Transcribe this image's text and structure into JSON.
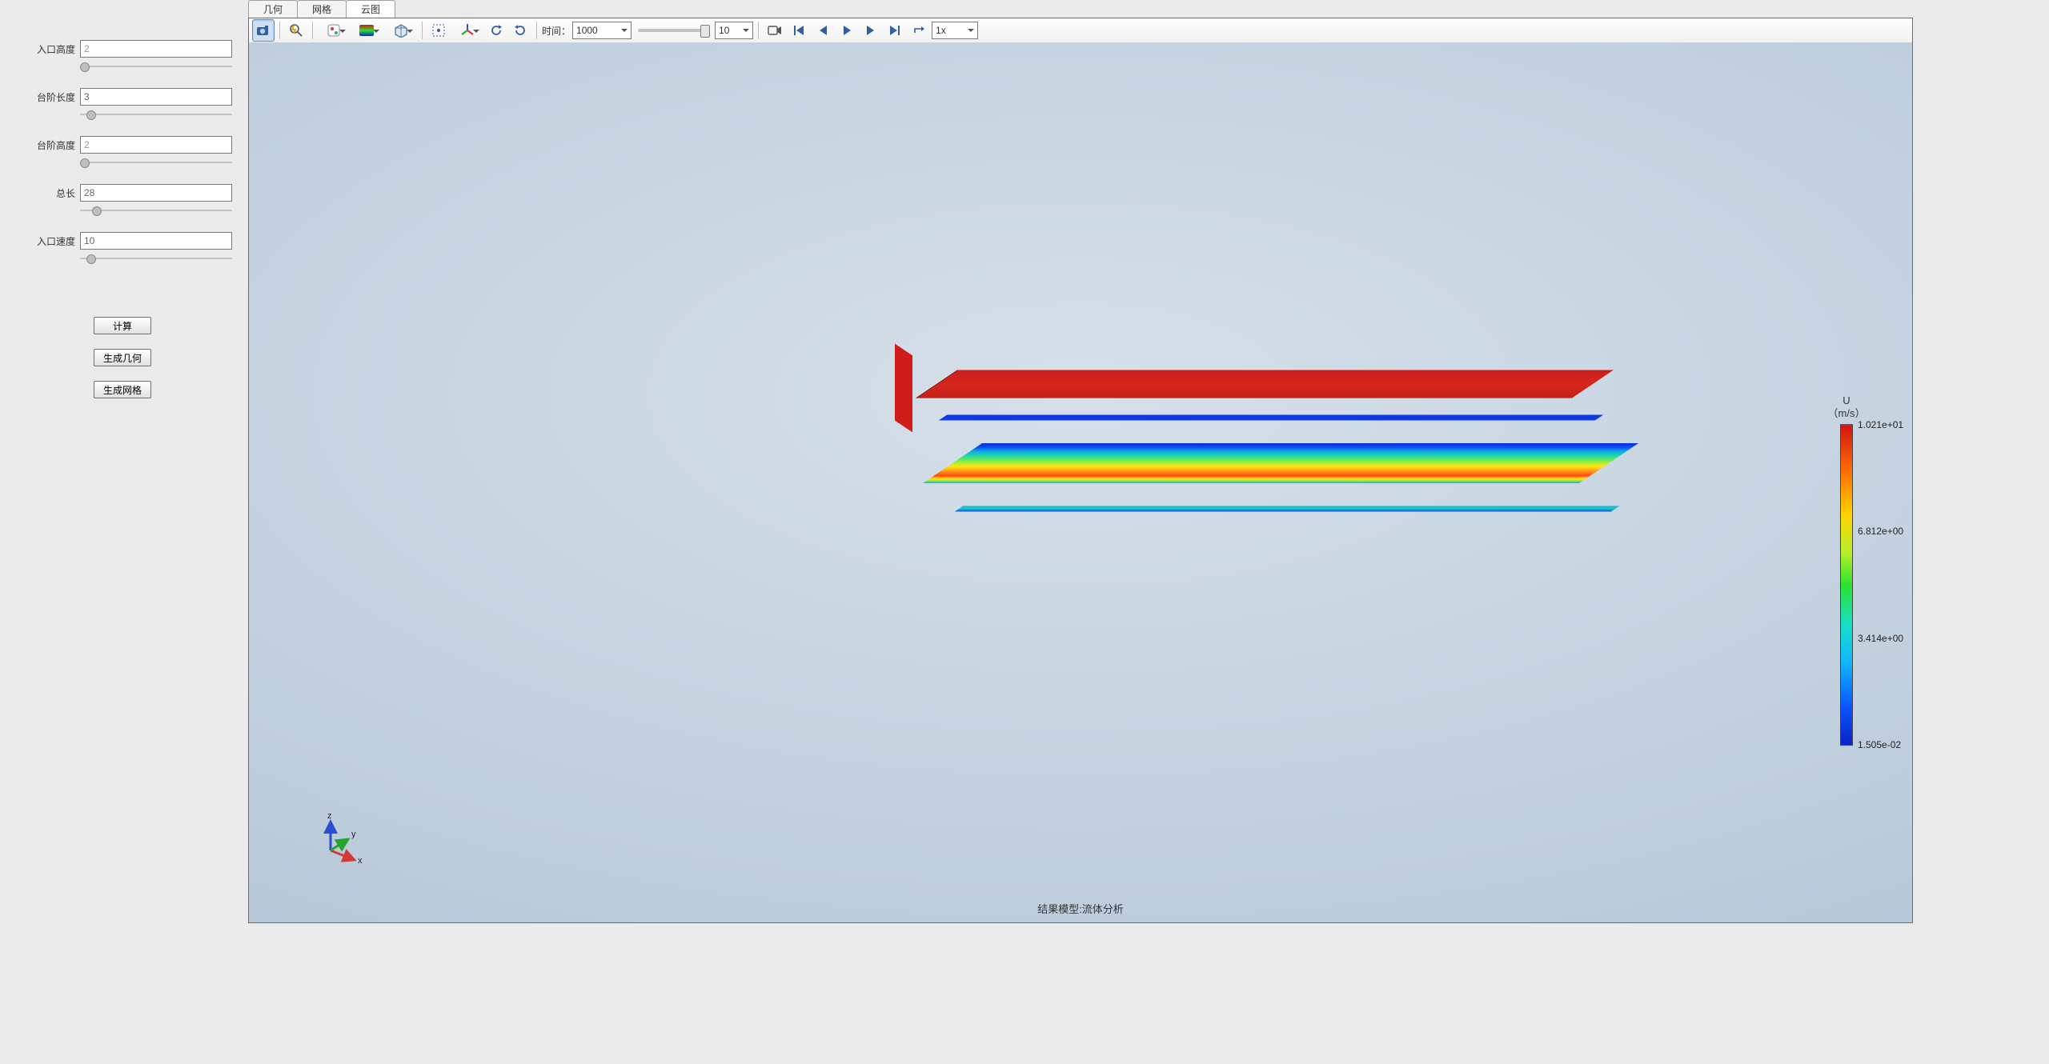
{
  "sidebar": {
    "params": [
      {
        "label": "入口高度",
        "value": "2",
        "readonly": true,
        "knob_pct": 0
      },
      {
        "label": "台阶长度",
        "value": "3",
        "readonly": false,
        "knob_pct": 4
      },
      {
        "label": "台阶高度",
        "value": "2",
        "readonly": true,
        "knob_pct": 0
      },
      {
        "label": "总长",
        "value": "28",
        "readonly": false,
        "knob_pct": 8
      },
      {
        "label": "入口速度",
        "value": "10",
        "readonly": false,
        "knob_pct": 4
      }
    ],
    "buttons": [
      {
        "id": "compute",
        "label": "计算"
      },
      {
        "id": "gen-geom",
        "label": "生成几何"
      },
      {
        "id": "gen-mesh",
        "label": "生成网格"
      }
    ]
  },
  "tabs": [
    {
      "id": "tab-geom",
      "label": "几何",
      "active": false
    },
    {
      "id": "tab-mesh",
      "label": "网格",
      "active": false
    },
    {
      "id": "tab-cloud",
      "label": "云图",
      "active": true
    }
  ],
  "toolbar": {
    "time_label": "时间：",
    "time_value": "1000",
    "time_step": "10",
    "speed": "1x"
  },
  "viewport": {
    "caption": "结果模型:流体分析",
    "triad": {
      "x_color": "#d013a3a",
      "y_color": "#2aa32a",
      "z_color": "#2a4fd0",
      "x": "x",
      "y": "y",
      "z": "z"
    }
  },
  "colorbar": {
    "title": "U",
    "units": "（m/s）",
    "ticks": [
      {
        "pos": 0,
        "label": "1.021e+01"
      },
      {
        "pos": 33.3,
        "label": "6.812e+00"
      },
      {
        "pos": 66.7,
        "label": "3.414e+00"
      },
      {
        "pos": 100,
        "label": "1.505e-02"
      }
    ],
    "gradient_css": "linear-gradient(180deg,#d21414 0%,#ff6a00 14%,#ffd400 28%,#b6ef2a 40%,#2de32d 50%,#18e0c3 62%,#12b8ff 74%,#0a55ff 88%,#0a22c9 100%)"
  },
  "model": {
    "type": "cfd-step-channel-3d",
    "top_color": "#cc1e1b",
    "side_color": "#0f3adf",
    "field_gradient": [
      "#0a2bd8",
      "#0e4df0",
      "#0fa7e7",
      "#1fd2b1",
      "#57e66b",
      "#b6ef2a",
      "#ffe21a",
      "#ffb316",
      "#ff7a17",
      "#ff4a15"
    ]
  }
}
